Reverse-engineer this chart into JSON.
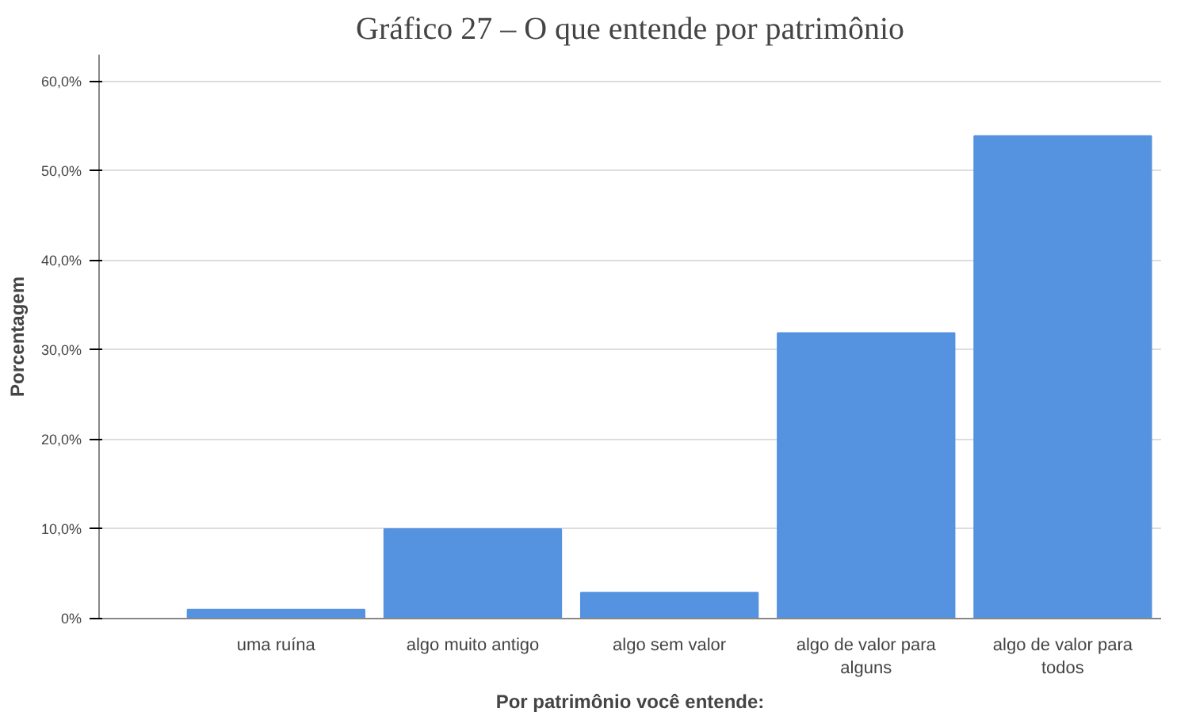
{
  "chart_data": {
    "type": "bar",
    "title": "Gráfico 27 – O que entende por patrimônio",
    "xlabel": "Por patrimônio você entende:",
    "ylabel": "Porcentagem",
    "categories": [
      "uma ruína",
      "algo muito antigo",
      "algo sem valor",
      "algo de valor para alguns",
      "algo de valor para todos"
    ],
    "values": [
      1.0,
      10.0,
      2.9,
      31.9,
      53.9
    ],
    "color": "#5592e0",
    "ylim": [
      0,
      63
    ],
    "yticks": [
      {
        "value": 0,
        "label": "0%"
      },
      {
        "value": 10,
        "label": "10,0%"
      },
      {
        "value": 20,
        "label": "20,0%"
      },
      {
        "value": 30,
        "label": "30,0%"
      },
      {
        "value": 40,
        "label": "40,0%"
      },
      {
        "value": 50,
        "label": "50,0%"
      },
      {
        "value": 60,
        "label": "60,0%"
      }
    ],
    "grid": "y"
  }
}
